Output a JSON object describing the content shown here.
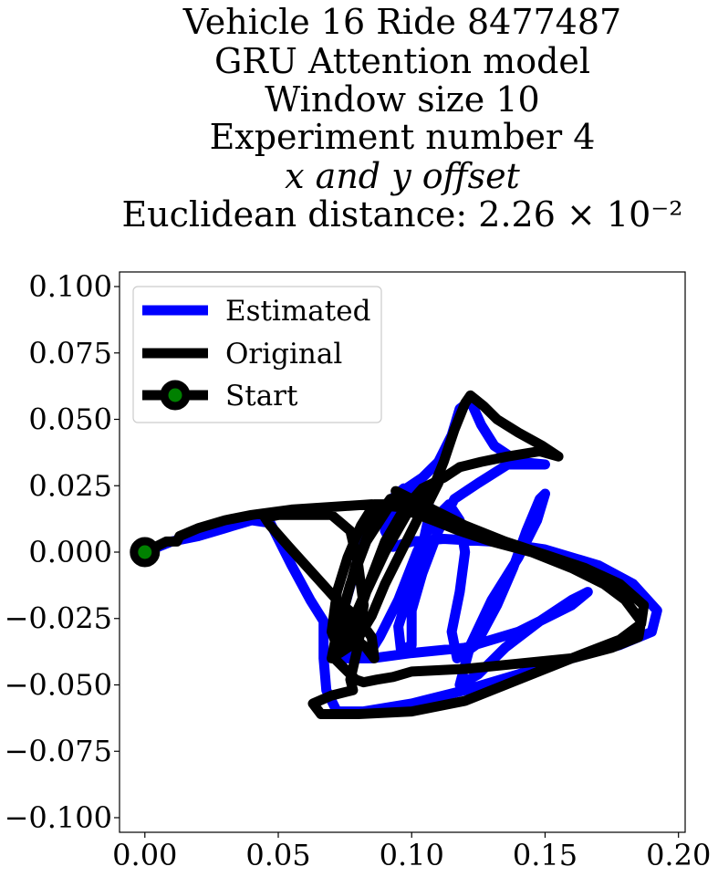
{
  "chart_data": {
    "type": "line",
    "title_lines": [
      "Vehicle 16 Ride 8477487",
      "GRU Attention model",
      "Window size 10",
      "Experiment number 4",
      "x and y offset",
      "Euclidean distance: 2.26 × 10⁻²"
    ],
    "xlabel": "",
    "ylabel": "",
    "xlim": [
      -0.0095,
      0.2025
    ],
    "ylim": [
      -0.1055,
      0.1055
    ],
    "x_ticks": [
      0.0,
      0.05,
      0.1,
      0.15,
      0.2
    ],
    "x_tick_labels": [
      "0.00",
      "0.05",
      "0.10",
      "0.15",
      "0.20"
    ],
    "y_ticks": [
      0.1,
      0.075,
      0.05,
      0.025,
      0.0,
      -0.025,
      -0.05,
      -0.075,
      -0.1
    ],
    "y_tick_labels": [
      "0.100",
      "0.075",
      "0.050",
      "0.025",
      "0.000",
      "−0.025",
      "−0.050",
      "−0.075",
      "−0.100"
    ],
    "grid": false,
    "legend": {
      "position": "upper-left",
      "entries": [
        "Estimated",
        "Original",
        "Start"
      ]
    },
    "colors": {
      "estimated": "#0000ff",
      "original": "#000000",
      "start_marker_face": "#008000",
      "start_marker_edge": "#000000"
    },
    "series": [
      {
        "name": "Estimated",
        "points": [
          [
            0.0,
            0.0
          ],
          [
            0.01,
            0.004
          ],
          [
            0.02,
            0.006
          ],
          [
            0.03,
            0.009
          ],
          [
            0.04,
            0.012
          ],
          [
            0.047,
            0.011
          ],
          [
            0.055,
            -0.005
          ],
          [
            0.062,
            -0.018
          ],
          [
            0.067,
            -0.026
          ],
          [
            0.067,
            -0.04
          ],
          [
            0.068,
            -0.052
          ],
          [
            0.072,
            -0.06
          ],
          [
            0.082,
            -0.06
          ],
          [
            0.1,
            -0.057
          ],
          [
            0.12,
            -0.052
          ],
          [
            0.14,
            -0.046
          ],
          [
            0.16,
            -0.04
          ],
          [
            0.178,
            -0.035
          ],
          [
            0.19,
            -0.03
          ],
          [
            0.192,
            -0.022
          ],
          [
            0.183,
            -0.012
          ],
          [
            0.17,
            -0.005
          ],
          [
            0.15,
            0.001
          ],
          [
            0.13,
            0.004
          ],
          [
            0.112,
            0.005
          ],
          [
            0.1,
            0.004
          ],
          [
            0.093,
            0.002
          ],
          [
            0.09,
            0.008
          ],
          [
            0.093,
            0.016
          ],
          [
            0.098,
            0.024
          ],
          [
            0.104,
            0.028
          ],
          [
            0.11,
            0.034
          ],
          [
            0.115,
            0.044
          ],
          [
            0.118,
            0.054
          ],
          [
            0.122,
            0.057
          ],
          [
            0.126,
            0.048
          ],
          [
            0.131,
            0.04
          ],
          [
            0.14,
            0.034
          ],
          [
            0.15,
            0.033
          ],
          [
            0.147,
            0.033
          ],
          [
            0.136,
            0.033
          ],
          [
            0.125,
            0.026
          ],
          [
            0.116,
            0.02
          ],
          [
            0.11,
            0.008
          ],
          [
            0.104,
            -0.008
          ],
          [
            0.1,
            -0.022
          ],
          [
            0.1,
            -0.035
          ],
          [
            0.096,
            -0.037
          ],
          [
            0.095,
            -0.028
          ],
          [
            0.1,
            -0.012
          ],
          [
            0.104,
            0.002
          ],
          [
            0.107,
            0.016
          ],
          [
            0.105,
            0.022
          ],
          [
            0.097,
            0.024
          ],
          [
            0.087,
            0.015
          ],
          [
            0.08,
            -0.002
          ],
          [
            0.075,
            -0.02
          ],
          [
            0.072,
            -0.035
          ],
          [
            0.074,
            -0.04
          ],
          [
            0.079,
            -0.038
          ],
          [
            0.083,
            -0.04
          ],
          [
            0.088,
            -0.032
          ],
          [
            0.095,
            -0.018
          ],
          [
            0.102,
            0.0
          ],
          [
            0.108,
            0.012
          ],
          [
            0.114,
            0.018
          ],
          [
            0.118,
            0.012
          ],
          [
            0.12,
            0.0
          ],
          [
            0.118,
            -0.015
          ],
          [
            0.115,
            -0.03
          ],
          [
            0.117,
            -0.04
          ],
          [
            0.124,
            -0.035
          ],
          [
            0.132,
            -0.02
          ],
          [
            0.138,
            -0.006
          ],
          [
            0.143,
            0.008
          ],
          [
            0.148,
            0.02
          ],
          [
            0.15,
            0.022
          ],
          [
            0.147,
            0.012
          ],
          [
            0.14,
            -0.002
          ],
          [
            0.13,
            -0.018
          ],
          [
            0.122,
            -0.035
          ],
          [
            0.118,
            -0.05
          ],
          [
            0.125,
            -0.046
          ],
          [
            0.135,
            -0.036
          ],
          [
            0.148,
            -0.026
          ],
          [
            0.16,
            -0.018
          ],
          [
            0.166,
            -0.015
          ],
          [
            0.16,
            -0.02
          ],
          [
            0.14,
            -0.03
          ],
          [
            0.12,
            -0.036
          ],
          [
            0.1,
            -0.038
          ],
          [
            0.085,
            -0.04
          ],
          [
            0.075,
            -0.04
          ]
        ]
      },
      {
        "name": "Original",
        "points": [
          [
            0.0,
            0.0
          ],
          [
            0.008,
            0.004
          ],
          [
            0.012,
            0.004
          ],
          [
            0.013,
            0.006
          ],
          [
            0.02,
            0.009
          ],
          [
            0.03,
            0.012
          ],
          [
            0.04,
            0.014
          ],
          [
            0.055,
            0.016
          ],
          [
            0.07,
            0.017
          ],
          [
            0.085,
            0.018
          ],
          [
            0.095,
            0.017
          ],
          [
            0.1,
            0.015
          ],
          [
            0.108,
            0.012
          ],
          [
            0.118,
            0.008
          ],
          [
            0.13,
            0.004
          ],
          [
            0.145,
            0.0
          ],
          [
            0.16,
            -0.006
          ],
          [
            0.172,
            -0.012
          ],
          [
            0.18,
            -0.018
          ],
          [
            0.186,
            -0.026
          ],
          [
            0.185,
            -0.032
          ],
          [
            0.175,
            -0.036
          ],
          [
            0.16,
            -0.04
          ],
          [
            0.14,
            -0.042
          ],
          [
            0.12,
            -0.044
          ],
          [
            0.1,
            -0.045
          ],
          [
            0.093,
            -0.047
          ],
          [
            0.087,
            -0.048
          ],
          [
            0.082,
            -0.049
          ],
          [
            0.079,
            -0.048
          ],
          [
            0.074,
            -0.043
          ],
          [
            0.071,
            -0.04
          ],
          [
            0.074,
            -0.036
          ],
          [
            0.078,
            -0.032
          ],
          [
            0.083,
            -0.036
          ],
          [
            0.086,
            -0.04
          ],
          [
            0.085,
            -0.032
          ],
          [
            0.08,
            -0.025
          ],
          [
            0.072,
            -0.018
          ],
          [
            0.063,
            -0.008
          ],
          [
            0.054,
            0.002
          ],
          [
            0.047,
            0.01
          ],
          [
            0.045,
            0.013
          ],
          [
            0.05,
            0.014
          ],
          [
            0.06,
            0.014
          ],
          [
            0.07,
            0.014
          ],
          [
            0.077,
            0.008
          ],
          [
            0.08,
            -0.005
          ],
          [
            0.082,
            -0.02
          ],
          [
            0.08,
            -0.035
          ],
          [
            0.077,
            -0.048
          ],
          [
            0.078,
            -0.052
          ],
          [
            0.07,
            -0.054
          ],
          [
            0.063,
            -0.057
          ],
          [
            0.066,
            -0.061
          ],
          [
            0.08,
            -0.061
          ],
          [
            0.1,
            -0.06
          ],
          [
            0.12,
            -0.056
          ],
          [
            0.135,
            -0.05
          ],
          [
            0.15,
            -0.044
          ],
          [
            0.165,
            -0.038
          ],
          [
            0.178,
            -0.033
          ],
          [
            0.186,
            -0.027
          ],
          [
            0.187,
            -0.02
          ],
          [
            0.178,
            -0.012
          ],
          [
            0.165,
            -0.006
          ],
          [
            0.15,
            -0.001
          ],
          [
            0.135,
            0.004
          ],
          [
            0.12,
            0.01
          ],
          [
            0.108,
            0.016
          ],
          [
            0.1,
            0.02
          ],
          [
            0.092,
            0.02
          ],
          [
            0.085,
            0.01
          ],
          [
            0.079,
            -0.005
          ],
          [
            0.075,
            -0.02
          ],
          [
            0.074,
            -0.035
          ],
          [
            0.078,
            -0.03
          ],
          [
            0.083,
            -0.015
          ],
          [
            0.09,
            0.0
          ],
          [
            0.098,
            0.014
          ],
          [
            0.105,
            0.024
          ],
          [
            0.11,
            0.026
          ],
          [
            0.106,
            0.018
          ],
          [
            0.1,
            0.02
          ],
          [
            0.092,
            0.018
          ],
          [
            0.083,
            0.004
          ],
          [
            0.077,
            -0.012
          ],
          [
            0.072,
            -0.03
          ],
          [
            0.07,
            -0.04
          ],
          [
            0.077,
            -0.028
          ],
          [
            0.084,
            -0.012
          ],
          [
            0.09,
            0.004
          ],
          [
            0.097,
            0.016
          ],
          [
            0.104,
            0.024
          ],
          [
            0.112,
            0.028
          ],
          [
            0.118,
            0.032
          ],
          [
            0.126,
            0.034
          ],
          [
            0.136,
            0.036
          ],
          [
            0.148,
            0.038
          ],
          [
            0.155,
            0.036
          ],
          [
            0.149,
            0.04
          ],
          [
            0.14,
            0.045
          ],
          [
            0.132,
            0.05
          ],
          [
            0.127,
            0.055
          ],
          [
            0.122,
            0.059
          ],
          [
            0.12,
            0.056
          ],
          [
            0.116,
            0.046
          ],
          [
            0.112,
            0.034
          ],
          [
            0.108,
            0.024
          ],
          [
            0.102,
            0.012
          ],
          [
            0.096,
            0.0
          ],
          [
            0.09,
            -0.012
          ],
          [
            0.085,
            -0.024
          ],
          [
            0.079,
            -0.034
          ],
          [
            0.073,
            -0.038
          ],
          [
            0.07,
            -0.03
          ],
          [
            0.072,
            -0.015
          ],
          [
            0.076,
            -0.002
          ],
          [
            0.081,
            0.01
          ],
          [
            0.086,
            0.018
          ],
          [
            0.092,
            0.018
          ],
          [
            0.1,
            0.016
          ],
          [
            0.108,
            0.014
          ],
          [
            0.115,
            0.012
          ],
          [
            0.108,
            0.016
          ],
          [
            0.1,
            0.02
          ],
          [
            0.094,
            0.023
          ]
        ]
      }
    ],
    "start_point": [
      0.0,
      0.0
    ]
  }
}
